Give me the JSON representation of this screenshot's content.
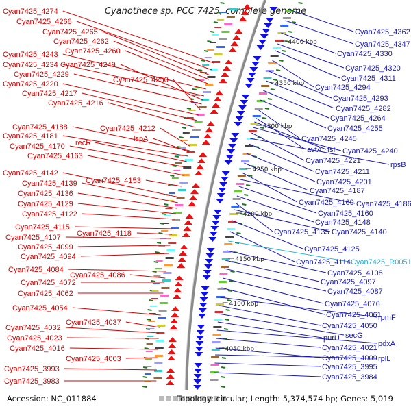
{
  "title": "Cyanothece sp. PCC 7425, complete genome",
  "accession": "Accession: NC_011884",
  "topology": "Topology: circular; Length: 5,374,574 bp; Genes: 5,019",
  "colors": {
    "left_label": "#d40000",
    "right_label": "#1a1ab0",
    "rna_label": "#23b5d8",
    "reverse_arrows": "#ee1111",
    "forward_arrows": "#1111dd",
    "backbone": "#8a8a8a",
    "gc_marks": "#227722"
  },
  "kbp_ticks": [
    "4400 kbp",
    "4350 kbp",
    "4300 kbp",
    "4250 kbp",
    "4200 kbp",
    "4150 kbp",
    "4100 kbp",
    "4050 kbp"
  ],
  "left_labels": [
    "Cyan7425_4274",
    "Cyan7425_4266",
    "Cyan7425_4265",
    "Cyan7425_4262",
    "Cyan7425_4260",
    "Cyan7425_4243",
    "Cyan7425_4234",
    "Cyan7425_4249",
    "Cyan7425_4229",
    "Cyan7425_4250",
    "Cyan7425_4220",
    "Cyan7425_4217",
    "Cyan7425_4216",
    "Cyan7425_4188",
    "Cyan7425_4212",
    "Cyan7425_4181",
    "lspA",
    "recR",
    "Cyan7425_4170",
    "Cyan7425_4163",
    "Cyan7425_4142",
    "Cyan7425_4153",
    "Cyan7425_4139",
    "Cyan7425_4136",
    "Cyan7425_4129",
    "Cyan7425_4122",
    "Cyan7425_4115",
    "Cyan7425_4118",
    "Cyan7425_4107",
    "Cyan7425_4099",
    "Cyan7425_4094",
    "Cyan7425_4084",
    "Cyan7425_4086",
    "Cyan7425_4072",
    "Cyan7425_4062",
    "Cyan7425_4054",
    "Cyan7425_4037",
    "Cyan7425_4032",
    "Cyan7425_4023",
    "Cyan7425_4016",
    "Cyan7425_4003",
    "Cyan7425_3993",
    "Cyan7425_3983"
  ],
  "right_labels": [
    "Cyan7425_4362",
    "Cyan7425_4347",
    "Cyan7425_4330",
    "Cyan7425_4320",
    "Cyan7425_4311",
    "Cyan7425_4294",
    "Cyan7425_4293",
    "Cyan7425_4282",
    "Cyan7425_4264",
    "Cyan7425_4255",
    "Cyan7425_4245",
    "avtA",
    "tsf",
    "Cyan7425_4240",
    "Cyan7425_4221",
    "rpsB",
    "Cyan7425_4211",
    "Cyan7425_4201",
    "Cyan7425_4187",
    "Cyan7425_4169",
    "Cyan7425_4186",
    "Cyan7425_4160",
    "Cyan7425_4148",
    "Cyan7425_4135",
    "Cyan7425_4140",
    "Cyan7425_4125",
    "Cyan7425_4114",
    "Cyan7425_R0051",
    "Cyan7425_4108",
    "Cyan7425_4097",
    "Cyan7425_4087",
    "Cyan7425_4076",
    "Cyan7425_4061",
    "rpmF",
    "Cyan7425_4050",
    "secG",
    "purU",
    "pdxA",
    "Cyan7425_4021",
    "Cyan7425_4009",
    "rplL",
    "Cyan7425_3995",
    "Cyan7425_3984"
  ]
}
